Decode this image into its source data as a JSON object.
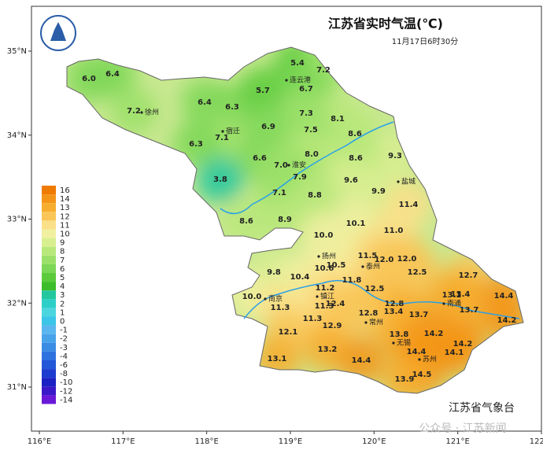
{
  "chart_data": {
    "type": "map",
    "title": "江苏省实时气温(℃)",
    "subtitle": "11月17日6时30分",
    "source": "江苏省气象台",
    "watermark": "公众号 · 江苏新闻",
    "xticks": [
      {
        "value": 116,
        "label": "116°E"
      },
      {
        "value": 117,
        "label": "117°E"
      },
      {
        "value": 118,
        "label": "118°E"
      },
      {
        "value": 119,
        "label": "119°E"
      },
      {
        "value": 120,
        "label": "120°E"
      },
      {
        "value": 121,
        "label": "121°E"
      },
      {
        "value": 122,
        "label": "122°E"
      }
    ],
    "yticks": [
      {
        "value": 35,
        "label": "35°N"
      },
      {
        "value": 34,
        "label": "34°N"
      },
      {
        "value": 33,
        "label": "33°N"
      },
      {
        "value": 32,
        "label": "32°N"
      },
      {
        "value": 31,
        "label": "31°N"
      }
    ],
    "legend": [
      {
        "label": 16,
        "color": "#ef7a00"
      },
      {
        "label": 14,
        "color": "#f49518"
      },
      {
        "label": 13,
        "color": "#f7ad2e"
      },
      {
        "label": 12,
        "color": "#f9c657"
      },
      {
        "label": 11,
        "color": "#fbe08a"
      },
      {
        "label": 10,
        "color": "#f1f0a0"
      },
      {
        "label": 9,
        "color": "#d8ef90"
      },
      {
        "label": 8,
        "color": "#b8e87a"
      },
      {
        "label": 7,
        "color": "#9be169"
      },
      {
        "label": 6,
        "color": "#7cd756"
      },
      {
        "label": 5,
        "color": "#5bcb3b"
      },
      {
        "label": 4,
        "color": "#3dbd2b"
      },
      {
        "label": 3,
        "color": "#22c79e"
      },
      {
        "label": 2,
        "color": "#2bcfc7"
      },
      {
        "label": 1,
        "color": "#4bd6df"
      },
      {
        "label": 0,
        "color": "#3bc5e8"
      },
      {
        "label": -1,
        "color": "#5ab6ee"
      },
      {
        "label": -2,
        "color": "#48a3ea"
      },
      {
        "label": -3,
        "color": "#3a8ce5"
      },
      {
        "label": -4,
        "color": "#2e72df"
      },
      {
        "label": -6,
        "color": "#2257d7"
      },
      {
        "label": -8,
        "color": "#1c3bcf"
      },
      {
        "label": -10,
        "color": "#1a22c3"
      },
      {
        "label": -12,
        "color": "#3a18c8"
      },
      {
        "label": -14,
        "color": "#6a18d8"
      }
    ],
    "cities": [
      "徐州",
      "宿迁",
      "连云港",
      "淮安",
      "盐城",
      "扬州",
      "泰州",
      "镇江",
      "南京",
      "常州",
      "无锡",
      "苏州",
      "南通"
    ],
    "values": [
      6.0,
      6.4,
      7.2,
      6.4,
      6.3,
      5.7,
      5.4,
      7.2,
      6.7,
      7.3,
      8.1,
      6.9,
      7.5,
      7.1,
      6.3,
      8.6,
      9.3,
      6.6,
      8.0,
      7.0,
      8.6,
      7.9,
      3.8,
      9.6,
      9.9,
      7.1,
      8.8,
      11.4,
      8.6,
      8.9,
      10.1,
      11.0,
      10.0,
      11.5,
      12.0,
      12.0,
      10.5,
      10.6,
      9.8,
      10.4,
      12.5,
      12.7,
      11.8,
      11.2,
      12.5,
      13.1,
      13.4,
      10.0,
      11.3,
      11.3,
      12.4,
      12.8,
      13.4,
      13.7,
      13.7,
      14.4,
      14.2,
      12.8,
      11.3,
      12.9,
      12.1,
      13.8,
      14.2,
      14.2,
      14.4,
      14.1,
      13.2,
      14.4,
      13.1,
      14.5,
      13.9
    ],
    "value_labels": [
      "6.0",
      "6.4",
      "7.2",
      "6.4",
      "6.3",
      "5.7",
      "5.4",
      "7.2",
      "6.7",
      "7.3",
      "8.1",
      "6.9",
      "7.5",
      "7.1",
      "6.3",
      "8.6",
      "9.3",
      "6.6",
      "8.0",
      "7.0",
      "8.6",
      "7.9",
      "3.8",
      "9.6",
      "9.9",
      "7.1",
      "8.8",
      "11.4",
      "8.6",
      "8.9",
      "10.1",
      "11.0",
      "10.0",
      "11.5",
      "12.0",
      "12.0",
      "10.5",
      "10.6",
      "9.8",
      "10.4",
      "12.5",
      "12.7",
      "11.8",
      "11.2",
      "12.5",
      "13.1",
      "13.4",
      "10.0",
      "11.3",
      "11.3",
      "12.4",
      "12.8",
      "13.4",
      "13.7",
      "13.7",
      "14.4",
      "14.2",
      "12.8",
      "11.3",
      "12.9",
      "12.1",
      "13.8",
      "14.2",
      "14.2",
      "14.4",
      "14.1",
      "13.2",
      "14.4",
      "13.1",
      "14.5",
      "13.9"
    ]
  }
}
